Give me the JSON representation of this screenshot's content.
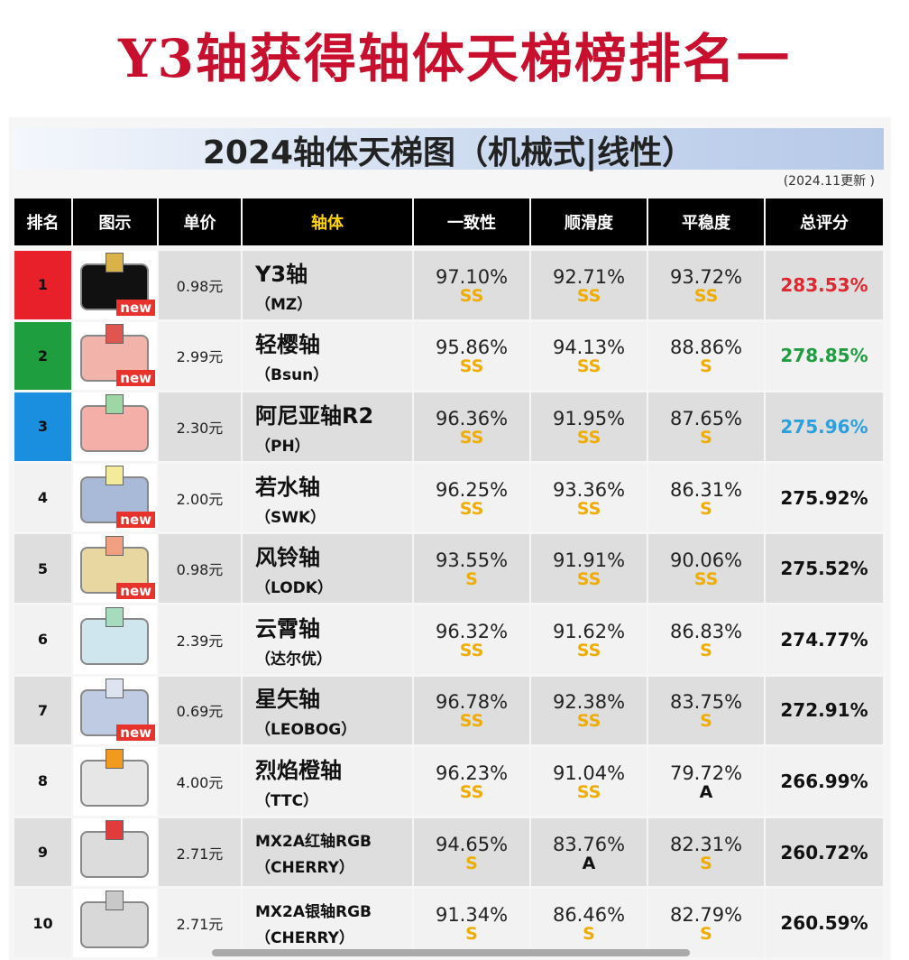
{
  "title": "Y3轴获得轴体天梯榜排名一",
  "table": {
    "title": "2024轴体天梯图（机械式|线性）",
    "note": "(2024.11更新 )",
    "headers": [
      "排名",
      "图示",
      "单价",
      "轴体",
      "一致性",
      "顺滑度",
      "平稳度",
      "总评分"
    ],
    "rows": [
      {
        "rank": "1",
        "badge": "new",
        "price": "0.98元",
        "name": "Y3轴",
        "maker": "（MZ）",
        "consistency": "97.10%",
        "consistency_grade": "SS",
        "smoothness": "92.71%",
        "smoothness_grade": "SS",
        "stability": "93.72%",
        "stability_grade": "SS",
        "total": "283.53%"
      },
      {
        "rank": "2",
        "badge": "new",
        "price": "2.99元",
        "name": "轻樱轴",
        "maker": "（Bsun）",
        "consistency": "95.86%",
        "consistency_grade": "SS",
        "smoothness": "94.13%",
        "smoothness_grade": "SS",
        "stability": "88.86%",
        "stability_grade": "S",
        "total": "278.85%"
      },
      {
        "rank": "3",
        "price": "2.30元",
        "name": "阿尼亚轴R2",
        "maker": "（PH）",
        "consistency": "96.36%",
        "consistency_grade": "SS",
        "smoothness": "91.95%",
        "smoothness_grade": "SS",
        "stability": "87.65%",
        "stability_grade": "S",
        "total": "275.96%"
      },
      {
        "rank": "4",
        "badge": "new",
        "price": "2.00元",
        "name": "若水轴",
        "maker": "（SWK）",
        "consistency": "96.25%",
        "consistency_grade": "SS",
        "smoothness": "93.36%",
        "smoothness_grade": "SS",
        "stability": "86.31%",
        "stability_grade": "S",
        "total": "275.92%"
      },
      {
        "rank": "5",
        "badge": "new",
        "price": "0.98元",
        "name": "风铃轴",
        "maker": "（LODK）",
        "consistency": "93.55%",
        "consistency_grade": "S",
        "smoothness": "91.91%",
        "smoothness_grade": "SS",
        "stability": "90.06%",
        "stability_grade": "SS",
        "total": "275.52%"
      },
      {
        "rank": "6",
        "price": "2.39元",
        "name": "云霄轴",
        "maker": "（达尔优）",
        "consistency": "96.32%",
        "consistency_grade": "SS",
        "smoothness": "91.62%",
        "smoothness_grade": "SS",
        "stability": "86.83%",
        "stability_grade": "S",
        "total": "274.77%"
      },
      {
        "rank": "7",
        "badge": "new",
        "price": "0.69元",
        "name": "星矢轴",
        "maker": "（LEOBOG）",
        "consistency": "96.78%",
        "consistency_grade": "SS",
        "smoothness": "92.38%",
        "smoothness_grade": "SS",
        "stability": "83.75%",
        "stability_grade": "S",
        "total": "272.91%"
      },
      {
        "rank": "8",
        "price": "4.00元",
        "name": "烈焰橙轴",
        "maker": "（TTC）",
        "consistency": "96.23%",
        "consistency_grade": "SS",
        "smoothness": "91.04%",
        "smoothness_grade": "SS",
        "stability": "79.72%",
        "stability_grade": "A",
        "total": "266.99%"
      },
      {
        "rank": "9",
        "price": "2.71元",
        "name": "MX2A红轴RGB",
        "maker": "（CHERRY）",
        "consistency": "94.65%",
        "consistency_grade": "S",
        "smoothness": "83.76%",
        "smoothness_grade": "A",
        "stability": "82.31%",
        "stability_grade": "S",
        "total": "260.72%"
      },
      {
        "rank": "10",
        "price": "2.71元",
        "name": "MX2A银轴RGB",
        "maker": "（CHERRY）",
        "consistency": "91.34%",
        "consistency_grade": "S",
        "smoothness": "86.46%",
        "smoothness_grade": "S",
        "stability": "82.79%",
        "stability_grade": "S",
        "total": "260.59%"
      }
    ]
  }
}
